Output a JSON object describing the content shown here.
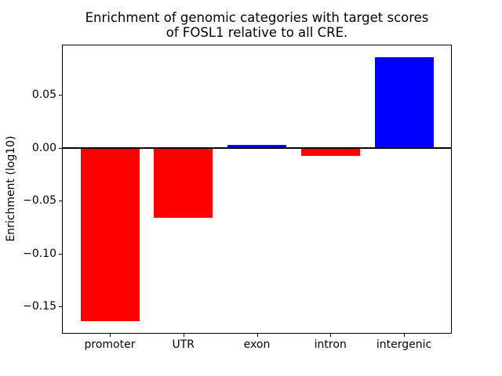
{
  "chart_data": {
    "type": "bar",
    "title": "Enrichment of genomic categories with target scores\nof FOSL1 relative to all CRE.",
    "xlabel": "",
    "ylabel": "Enrichment (log10)",
    "categories": [
      "promoter",
      "UTR",
      "exon",
      "intron",
      "intergenic"
    ],
    "values": [
      -0.164,
      -0.066,
      0.003,
      -0.0075,
      0.086
    ],
    "bar_colors": [
      "#ff0000",
      "#ff0000",
      "#0000ff",
      "#ff0000",
      "#0000ff"
    ],
    "positive_color": "#0000ff",
    "negative_color": "#ff0000",
    "background_color": "#ffffff",
    "axis_color": "#000000",
    "ylim": [
      -0.175,
      0.097
    ],
    "xlim": [
      -0.64,
      4.64
    ],
    "bar_width": 0.8,
    "y_ticks": [
      {
        "value": 0.05,
        "label": "0.05"
      },
      {
        "value": 0.0,
        "label": "0.00"
      },
      {
        "value": -0.05,
        "label": "−0.05"
      },
      {
        "value": -0.1,
        "label": "−0.10"
      },
      {
        "value": -0.15,
        "label": "−0.15"
      }
    ],
    "grid": false,
    "legend": null,
    "zero_line": true
  }
}
